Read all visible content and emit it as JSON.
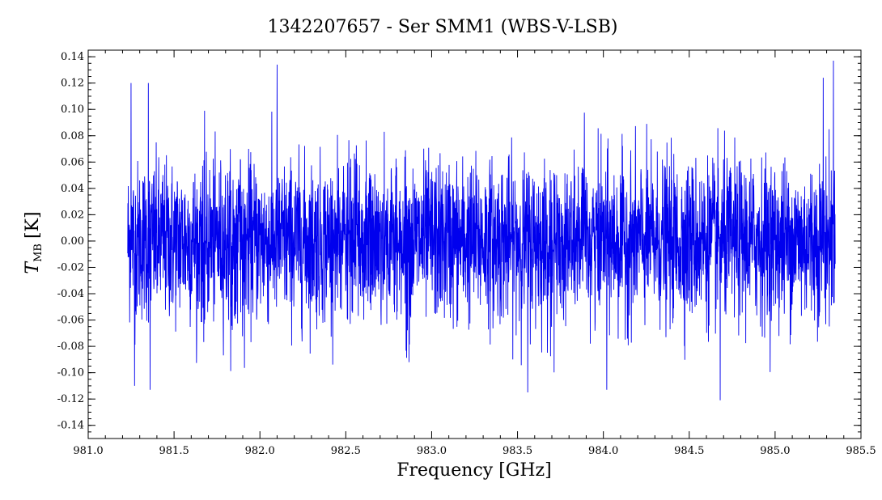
{
  "chart_data": {
    "type": "line",
    "title": "1342207657 - Ser SMM1 (WBS-V-LSB)",
    "xlabel": "Frequency [GHz]",
    "ylabel_main": "T",
    "ylabel_sub": "MB",
    "ylabel_unit": "[K]",
    "xlim": [
      981.0,
      985.5
    ],
    "ylim": [
      -0.15,
      0.145
    ],
    "x_ticks": [
      981.0,
      981.5,
      982.0,
      982.5,
      983.0,
      983.5,
      984.0,
      984.5,
      985.0,
      985.5
    ],
    "x_tick_labels": [
      "981.0",
      "981.5",
      "982.0",
      "982.5",
      "983.0",
      "983.5",
      "984.0",
      "984.5",
      "985.0",
      "985.5"
    ],
    "y_ticks": [
      -0.14,
      -0.12,
      -0.1,
      -0.08,
      -0.06,
      -0.04,
      -0.02,
      0.0,
      0.02,
      0.04,
      0.06,
      0.08,
      0.1,
      0.12,
      0.14
    ],
    "y_tick_labels": [
      "-0.14",
      "-0.12",
      "-0.10",
      "-0.08",
      "-0.06",
      "-0.04",
      "-0.02",
      "0.00",
      "0.02",
      "0.04",
      "0.06",
      "0.08",
      "0.10",
      "0.12",
      "0.14"
    ],
    "series": [
      {
        "color": "#0000ee",
        "x_start": 981.23,
        "x_end": 985.35,
        "noise_rms": 0.03,
        "mean": 0.0,
        "extremes": [
          {
            "x": 981.25,
            "y": 0.12
          },
          {
            "x": 981.27,
            "y": -0.11
          },
          {
            "x": 981.35,
            "y": 0.12
          },
          {
            "x": 981.36,
            "y": -0.113
          },
          {
            "x": 982.1,
            "y": 0.134
          },
          {
            "x": 983.56,
            "y": -0.115
          },
          {
            "x": 984.02,
            "y": -0.113
          },
          {
            "x": 984.68,
            "y": -0.121
          },
          {
            "x": 985.28,
            "y": 0.124
          },
          {
            "x": 985.34,
            "y": 0.137
          }
        ]
      }
    ],
    "grid": false,
    "legend": "none"
  }
}
